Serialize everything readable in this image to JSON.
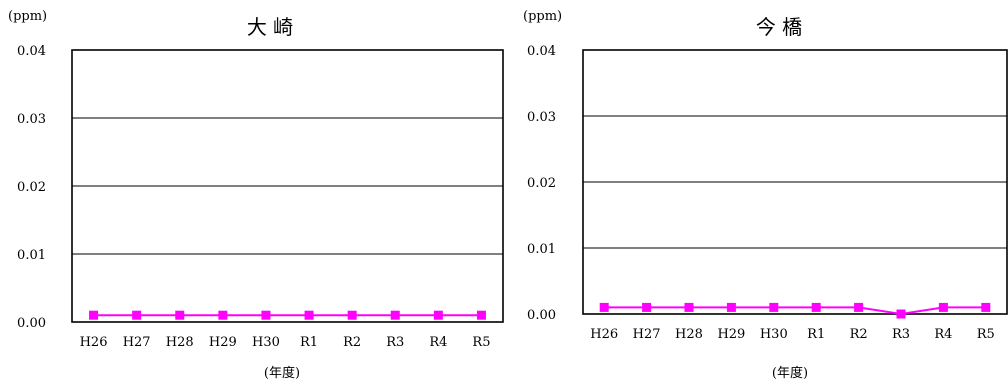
{
  "chart_data": [
    {
      "type": "line",
      "title": "大 崎",
      "unit": "(ppm)",
      "xlabel": "(年度)",
      "ylabel": "",
      "categories": [
        "H26",
        "H27",
        "H28",
        "H29",
        "H30",
        "R1",
        "R2",
        "R3",
        "R4",
        "R5"
      ],
      "series": [
        {
          "values": [
            0.001,
            0.001,
            0.001,
            0.001,
            0.001,
            0.001,
            0.001,
            0.001,
            0.001,
            0.001
          ],
          "color": "#ff00ff"
        }
      ],
      "ylim": [
        0,
        0.04
      ],
      "yticks": [
        "0.00",
        "0.01",
        "0.02",
        "0.03",
        "0.04"
      ],
      "grid": true,
      "legend": "none"
    },
    {
      "type": "line",
      "title": "今 橋",
      "unit": "(ppm)",
      "xlabel": "(年度)",
      "ylabel": "",
      "categories": [
        "H26",
        "H27",
        "H28",
        "H29",
        "H30",
        "R1",
        "R2",
        "R3",
        "R4",
        "R5"
      ],
      "series": [
        {
          "values": [
            0.001,
            0.001,
            0.001,
            0.001,
            0.001,
            0.001,
            0.001,
            0.0,
            0.001,
            0.001
          ],
          "color": "#ff00ff"
        }
      ],
      "ylim": [
        0,
        0.04
      ],
      "yticks": [
        "0.00",
        "0.01",
        "0.02",
        "0.03",
        "0.04"
      ],
      "grid": true,
      "legend": "none"
    }
  ]
}
